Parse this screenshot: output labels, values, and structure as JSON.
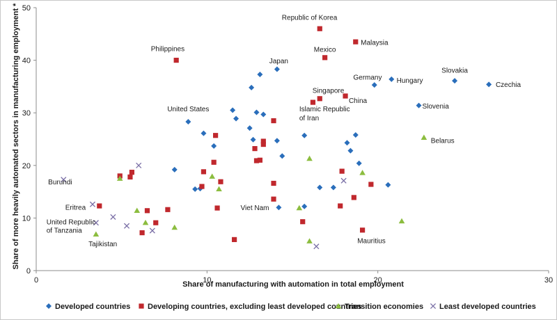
{
  "chart_data": {
    "type": "scatter",
    "xlabel": "Share of manufacturing with automation in total employment",
    "ylabel": "Share of more heavily automated sectors in manufacturing employment *",
    "xlim": [
      0,
      30
    ],
    "ylim": [
      0,
      50
    ],
    "xticks": [
      0,
      10,
      20,
      30
    ],
    "yticks": [
      0,
      10,
      20,
      30,
      40,
      50
    ],
    "grid": false,
    "legend_position": "bottom",
    "series": [
      {
        "name": "Developed countries",
        "marker": "diamond",
        "color": "#2a6ebb",
        "points": [
          [
            8.1,
            19.2
          ],
          [
            8.9,
            28.3
          ],
          [
            9.3,
            15.5
          ],
          [
            9.6,
            15.6
          ],
          [
            9.8,
            26.1
          ],
          [
            10.4,
            23.7
          ],
          [
            11.5,
            30.5
          ],
          [
            11.7,
            28.9
          ],
          [
            12.5,
            27.1
          ],
          [
            12.6,
            34.8
          ],
          [
            12.7,
            24.9
          ],
          [
            12.9,
            30.1
          ],
          [
            13.1,
            37.3
          ],
          [
            13.3,
            29.7
          ],
          [
            14.1,
            24.7
          ],
          [
            14.1,
            38.3
          ],
          [
            14.2,
            12.0
          ],
          [
            14.4,
            21.8
          ],
          [
            15.7,
            25.7
          ],
          [
            15.7,
            12.2
          ],
          [
            16.6,
            15.8
          ],
          [
            17.4,
            15.8
          ],
          [
            18.2,
            24.3
          ],
          [
            18.4,
            22.8
          ],
          [
            18.7,
            25.8
          ],
          [
            18.9,
            20.4
          ],
          [
            19.8,
            35.3
          ],
          [
            20.6,
            16.3
          ],
          [
            20.8,
            36.4
          ],
          [
            22.4,
            31.4
          ],
          [
            24.5,
            36.1
          ],
          [
            26.5,
            35.4
          ]
        ]
      },
      {
        "name": "Developing countries, excluding least developed countries",
        "marker": "square",
        "color": "#c0282d",
        "points": [
          [
            3.7,
            12.3
          ],
          [
            4.9,
            18.0
          ],
          [
            5.5,
            17.8
          ],
          [
            5.6,
            18.7
          ],
          [
            6.2,
            7.2
          ],
          [
            6.5,
            11.4
          ],
          [
            7.0,
            9.1
          ],
          [
            7.7,
            11.6
          ],
          [
            8.2,
            40.0
          ],
          [
            9.7,
            16.0
          ],
          [
            9.8,
            18.8
          ],
          [
            10.4,
            20.6
          ],
          [
            10.5,
            25.7
          ],
          [
            10.6,
            11.9
          ],
          [
            10.8,
            16.9
          ],
          [
            11.6,
            5.9
          ],
          [
            12.8,
            23.2
          ],
          [
            12.9,
            20.9
          ],
          [
            13.1,
            21.0
          ],
          [
            13.3,
            24.6
          ],
          [
            13.3,
            24.0
          ],
          [
            13.9,
            16.6
          ],
          [
            13.9,
            28.5
          ],
          [
            13.9,
            13.6
          ],
          [
            15.6,
            9.3
          ],
          [
            16.2,
            32.0
          ],
          [
            16.6,
            32.7
          ],
          [
            16.6,
            46.0
          ],
          [
            16.9,
            40.5
          ],
          [
            17.8,
            12.3
          ],
          [
            17.9,
            18.9
          ],
          [
            18.1,
            33.2
          ],
          [
            18.6,
            13.9
          ],
          [
            18.7,
            43.5
          ],
          [
            19.1,
            7.7
          ],
          [
            19.6,
            16.4
          ]
        ]
      },
      {
        "name": "Transition economies",
        "marker": "triangle",
        "color": "#8cbd3f",
        "points": [
          [
            3.5,
            6.9
          ],
          [
            4.9,
            17.5
          ],
          [
            5.9,
            11.4
          ],
          [
            6.4,
            9.1
          ],
          [
            8.1,
            8.2
          ],
          [
            10.3,
            17.9
          ],
          [
            10.7,
            15.5
          ],
          [
            15.4,
            11.9
          ],
          [
            16.0,
            5.6
          ],
          [
            16.0,
            21.3
          ],
          [
            19.1,
            18.6
          ],
          [
            21.4,
            9.4
          ],
          [
            22.7,
            25.3
          ]
        ]
      },
      {
        "name": "Least developed countries",
        "marker": "x",
        "color": "#7a6fa6",
        "points": [
          [
            1.6,
            17.3
          ],
          [
            3.3,
            12.6
          ],
          [
            3.5,
            9.1
          ],
          [
            4.5,
            10.2
          ],
          [
            5.3,
            8.5
          ],
          [
            6.0,
            20.0
          ],
          [
            6.8,
            7.6
          ],
          [
            16.4,
            4.6
          ],
          [
            18.0,
            17.1
          ]
        ]
      }
    ],
    "annotations": [
      {
        "text": "Republic of Korea",
        "x": 16.0,
        "y": 47.7,
        "anchor": "middle"
      },
      {
        "text": "Malaysia",
        "x": 19.0,
        "y": 42.9,
        "anchor": "start"
      },
      {
        "text": "Mexico",
        "x": 16.9,
        "y": 41.6,
        "anchor": "middle"
      },
      {
        "text": "Philippines",
        "x": 7.7,
        "y": 41.7,
        "anchor": "middle"
      },
      {
        "text": "Japan",
        "x": 14.2,
        "y": 39.4,
        "anchor": "middle"
      },
      {
        "text": "Germany",
        "x": 19.4,
        "y": 36.3,
        "anchor": "middle"
      },
      {
        "text": "Hungary",
        "x": 21.1,
        "y": 35.7,
        "anchor": "start"
      },
      {
        "text": "Slovakia",
        "x": 24.5,
        "y": 37.6,
        "anchor": "middle"
      },
      {
        "text": "Czechia",
        "x": 26.9,
        "y": 34.9,
        "anchor": "start"
      },
      {
        "text": "Singapore",
        "x": 17.1,
        "y": 33.8,
        "anchor": "middle"
      },
      {
        "text": "China",
        "x": 18.3,
        "y": 31.9,
        "anchor": "start"
      },
      {
        "text": "Slovenia",
        "x": 22.6,
        "y": 30.8,
        "anchor": "start"
      },
      {
        "text": "Islamic Republic",
        "x": 15.4,
        "y": 30.3,
        "anchor": "start"
      },
      {
        "text": "of Iran",
        "x": 15.4,
        "y": 28.6,
        "anchor": "start"
      },
      {
        "text": "United States",
        "x": 8.9,
        "y": 30.3,
        "anchor": "middle"
      },
      {
        "text": "Belarus",
        "x": 23.1,
        "y": 24.3,
        "anchor": "start"
      },
      {
        "text": "Burundi",
        "x": 0.7,
        "y": 16.4,
        "anchor": "start"
      },
      {
        "text": "Eritrea",
        "x": 1.7,
        "y": 11.6,
        "anchor": "start"
      },
      {
        "text": "United Republic",
        "x": 0.6,
        "y": 8.8,
        "anchor": "start"
      },
      {
        "text": "of Tanzania",
        "x": 0.6,
        "y": 7.2,
        "anchor": "start"
      },
      {
        "text": "Viet Nam",
        "x": 12.8,
        "y": 11.5,
        "anchor": "middle"
      },
      {
        "text": "Tajikistan",
        "x": 3.9,
        "y": 4.6,
        "anchor": "middle"
      },
      {
        "text": "Mauritius",
        "x": 18.8,
        "y": 5.2,
        "anchor": "start"
      }
    ]
  }
}
